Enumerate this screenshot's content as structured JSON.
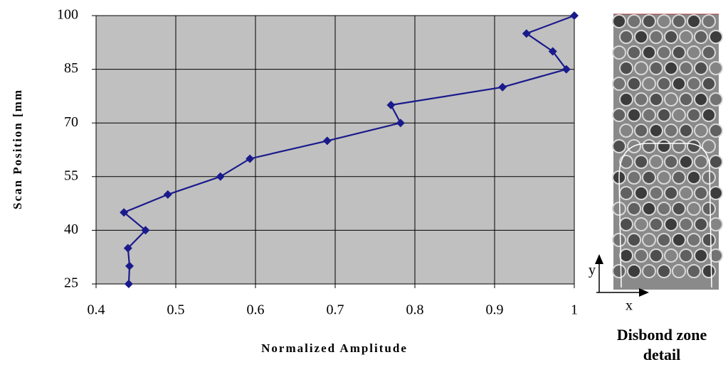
{
  "chart_data": {
    "type": "line",
    "xlabel": "Normalized Amplitude",
    "ylabel": "Scan Position [mm",
    "x": [
      1.0,
      0.94,
      0.973,
      0.99,
      0.91,
      0.77,
      0.782,
      0.69,
      0.593,
      0.556,
      0.49,
      0.435,
      0.462,
      0.44,
      0.442,
      0.441
    ],
    "series": [
      {
        "color": "#1a1a8c",
        "values": [
          100,
          95,
          90,
          85,
          80,
          75,
          70,
          65,
          60,
          55,
          50,
          45,
          40,
          35,
          30,
          25
        ]
      }
    ],
    "xlim": [
      0.4,
      1
    ],
    "xticks": [
      0.4,
      0.5,
      0.6,
      0.7,
      0.8,
      0.9,
      1
    ],
    "ylim": [
      25,
      100
    ],
    "yticks": [
      25,
      40,
      55,
      70,
      85,
      100
    ],
    "grid": true
  },
  "image_panel": {
    "caption": [
      "Disbond zone",
      "detail"
    ],
    "x_label": "x",
    "y_label": "y"
  }
}
